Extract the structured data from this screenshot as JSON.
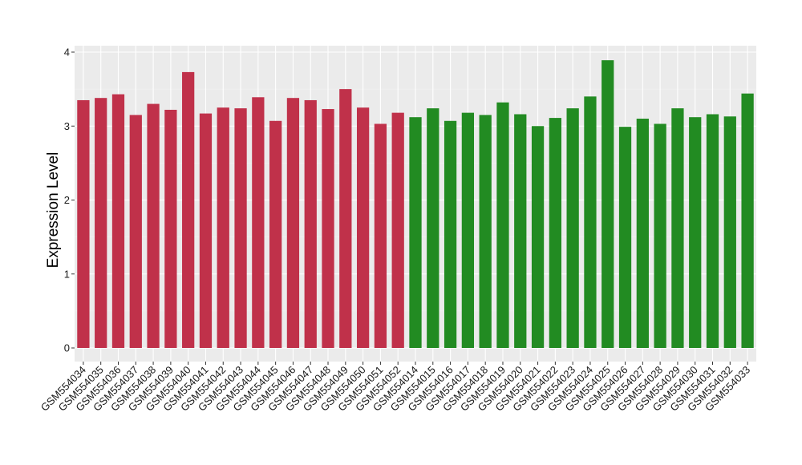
{
  "chart_data": {
    "type": "bar",
    "ylabel": "Expression Level",
    "xlabel": "",
    "ylim": [
      0,
      4.1
    ],
    "yticks": [
      0,
      1,
      2,
      3,
      4
    ],
    "grid": true,
    "background": "#ebebeb",
    "categories": [
      "GSM554034",
      "GSM554035",
      "GSM554036",
      "GSM554037",
      "GSM554038",
      "GSM554039",
      "GSM554040",
      "GSM554041",
      "GSM554042",
      "GSM554043",
      "GSM554044",
      "GSM554045",
      "GSM554046",
      "GSM554047",
      "GSM554048",
      "GSM554049",
      "GSM554050",
      "GSM554051",
      "GSM554052",
      "GSM554014",
      "GSM554015",
      "GSM554016",
      "GSM554017",
      "GSM554018",
      "GSM554019",
      "GSM554020",
      "GSM554021",
      "GSM554022",
      "GSM554023",
      "GSM554024",
      "GSM554025",
      "GSM554026",
      "GSM554027",
      "GSM554028",
      "GSM554029",
      "GSM554030",
      "GSM554031",
      "GSM554032",
      "GSM554033"
    ],
    "values": [
      3.35,
      3.38,
      3.43,
      3.15,
      3.3,
      3.22,
      3.73,
      3.17,
      3.25,
      3.24,
      3.39,
      3.07,
      3.38,
      3.35,
      3.23,
      3.5,
      3.25,
      3.03,
      3.18,
      3.12,
      3.24,
      3.07,
      3.18,
      3.15,
      3.32,
      3.16,
      3.0,
      3.11,
      3.24,
      3.4,
      3.89,
      2.99,
      3.1,
      3.03,
      3.24,
      3.12,
      3.16,
      3.13,
      3.44
    ],
    "series_colors": [
      "#c0314a",
      "#c0314a",
      "#c0314a",
      "#c0314a",
      "#c0314a",
      "#c0314a",
      "#c0314a",
      "#c0314a",
      "#c0314a",
      "#c0314a",
      "#c0314a",
      "#c0314a",
      "#c0314a",
      "#c0314a",
      "#c0314a",
      "#c0314a",
      "#c0314a",
      "#c0314a",
      "#c0314a",
      "#228b22",
      "#228b22",
      "#228b22",
      "#228b22",
      "#228b22",
      "#228b22",
      "#228b22",
      "#228b22",
      "#228b22",
      "#228b22",
      "#228b22",
      "#228b22",
      "#228b22",
      "#228b22",
      "#228b22",
      "#228b22",
      "#228b22",
      "#228b22",
      "#228b22",
      "#228b22"
    ]
  }
}
